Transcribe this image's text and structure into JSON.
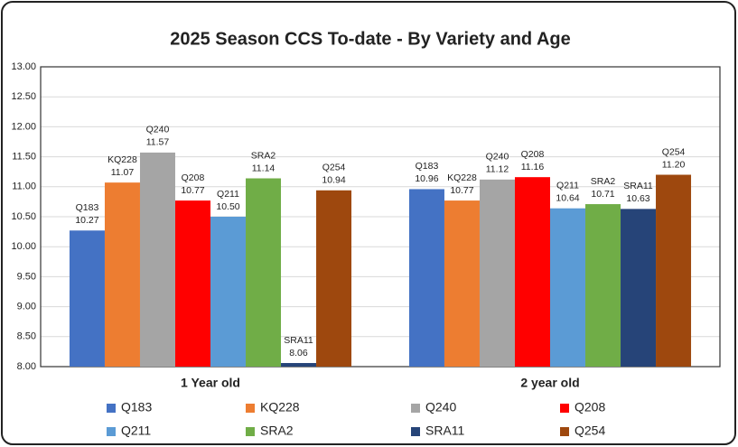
{
  "chart_data": {
    "type": "bar",
    "title": "2025 Season CCS To-date - By Variety and Age",
    "categories": [
      "1 Year old",
      "2 year old"
    ],
    "series": [
      {
        "name": "Q183",
        "color": "#4472c4",
        "values": [
          10.27,
          10.96
        ],
        "value_labels": [
          "10.27",
          "10.96"
        ]
      },
      {
        "name": "KQ228",
        "color": "#ed7d31",
        "values": [
          11.07,
          10.77
        ],
        "value_labels": [
          "11.07",
          "10.77"
        ]
      },
      {
        "name": "Q240",
        "color": "#a5a5a5",
        "values": [
          11.57,
          11.12
        ],
        "value_labels": [
          "11.57",
          "11.12"
        ]
      },
      {
        "name": "Q208",
        "color": "#ff0000",
        "values": [
          10.77,
          11.16
        ],
        "value_labels": [
          "10.77",
          "11.16"
        ]
      },
      {
        "name": "Q211",
        "color": "#5b9bd5",
        "values": [
          10.5,
          10.64
        ],
        "value_labels": [
          "10.50",
          "10.64"
        ]
      },
      {
        "name": "SRA2",
        "color": "#70ad47",
        "values": [
          11.14,
          10.71
        ],
        "value_labels": [
          "11.14",
          "10.71"
        ]
      },
      {
        "name": "SRA11",
        "color": "#264478",
        "values": [
          8.06,
          10.63
        ],
        "value_labels": [
          "8.06",
          "10.63"
        ]
      },
      {
        "name": "Q254",
        "color": "#9e480e",
        "values": [
          10.94,
          11.2
        ],
        "value_labels": [
          "10.94",
          "11.20"
        ]
      }
    ],
    "ylim": [
      8,
      13
    ],
    "yticks": [
      {
        "value": 8,
        "label": "8.00"
      },
      {
        "value": 8.5,
        "label": "8.50"
      },
      {
        "value": 9,
        "label": "9.00"
      },
      {
        "value": 9.5,
        "label": "9.50"
      },
      {
        "value": 10,
        "label": "10.00"
      },
      {
        "value": 10.5,
        "label": "10.50"
      },
      {
        "value": 11,
        "label": "11.00"
      },
      {
        "value": 11.5,
        "label": "11.50"
      },
      {
        "value": 12,
        "label": "12.00"
      },
      {
        "value": 12.5,
        "label": "12.50"
      },
      {
        "value": 13,
        "label": "13.00"
      }
    ],
    "grid": true,
    "legend": "bottom"
  }
}
